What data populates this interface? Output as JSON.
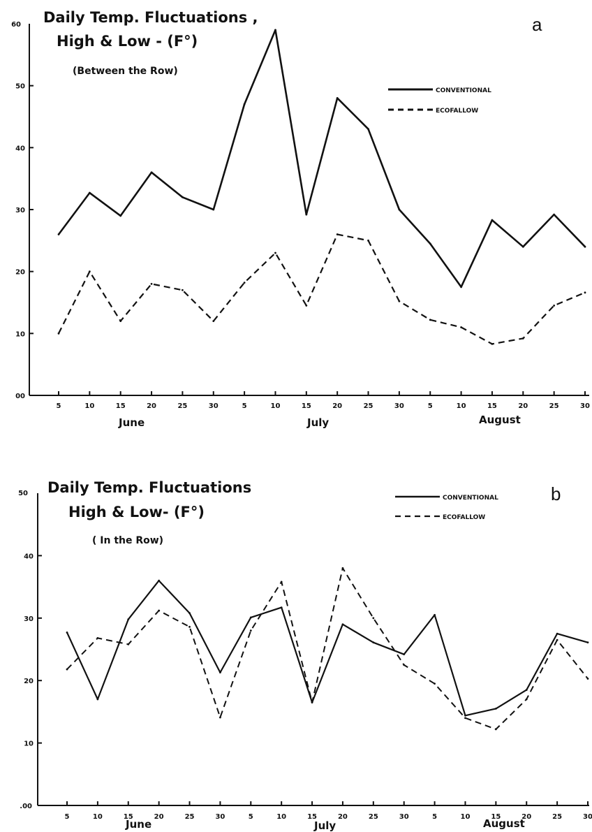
{
  "chart_data": [
    {
      "panel": "a",
      "type": "line",
      "title": "Daily Temp. Fluctuations ,",
      "title_line2": "High & Low - (F°)",
      "subtitle": "(Between the Row)",
      "x_ticks": [
        "5",
        "10",
        "15",
        "20",
        "25",
        "30",
        "5",
        "10",
        "15",
        "20",
        "25",
        "30",
        "5",
        "10",
        "15",
        "20",
        "25",
        "30"
      ],
      "months": [
        "June",
        "July",
        "August"
      ],
      "y_ticks": [
        "10",
        "20",
        "30",
        "40",
        "50"
      ],
      "y_top_label": "60",
      "y_zero_label": "00",
      "ylim": [
        0,
        60
      ],
      "legend_position": "top-right",
      "series": [
        {
          "name": "CONVENTIONAL",
          "style": "solid",
          "values": [
            26,
            32.7,
            29,
            36,
            32,
            30,
            47,
            59,
            29.2,
            48,
            43,
            30,
            24.5,
            17.5,
            28.3,
            24,
            29.2,
            24
          ]
        },
        {
          "name": "ECOFALLOW",
          "style": "dashed",
          "values": [
            10,
            20,
            12,
            18,
            17,
            12,
            18.2,
            23,
            14.5,
            26,
            25,
            15.2,
            12.2,
            11,
            8.3,
            9.2,
            14.5,
            16.6
          ]
        }
      ]
    },
    {
      "panel": "b",
      "type": "line",
      "title": "Daily Temp. Fluctuations",
      "title_line2": "High & Low- (F°)",
      "subtitle": "( In the Row)",
      "x_ticks": [
        "5",
        "10",
        "15",
        "20",
        "25",
        "30",
        "5",
        "10",
        "15",
        "20",
        "25",
        "30",
        "5",
        "10",
        "15",
        "20",
        "25",
        "30"
      ],
      "months": [
        "June",
        "July",
        "August"
      ],
      "y_ticks": [
        "10",
        "20",
        "30",
        "40"
      ],
      "y_top_label": "50",
      "y_zero_label": ".00",
      "ylim": [
        0,
        50
      ],
      "legend_position": "top-right",
      "series": [
        {
          "name": "CONVENTIONAL",
          "style": "solid",
          "values": [
            27.7,
            17,
            29.8,
            36,
            30.8,
            21.3,
            30.1,
            31.7,
            16.5,
            29,
            26.1,
            24.2,
            30.5,
            14.4,
            15.5,
            18.5,
            27.5,
            26.1
          ]
        },
        {
          "name": "ECOFALLOW",
          "style": "dashed",
          "values": [
            21.8,
            26.8,
            25.8,
            31.2,
            28.6,
            14.1,
            28,
            35.8,
            16.5,
            38,
            30,
            22.5,
            19.5,
            14,
            12.2,
            17,
            26.5,
            20.3
          ]
        }
      ]
    }
  ]
}
